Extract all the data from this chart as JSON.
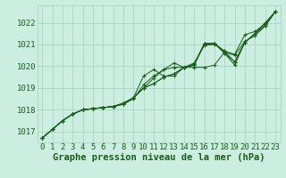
{
  "bg_color": "#cceee0",
  "plot_bg_color": "#cceee0",
  "grid_color": "#aad4c4",
  "line_color": "#1a5c1a",
  "marker_color": "#1a5c1a",
  "xlabel": "Graphe pression niveau de la mer (hPa)",
  "xlabel_fontsize": 7.5,
  "tick_fontsize": 6.5,
  "xlim": [
    -0.5,
    23.5
  ],
  "ylim": [
    1016.5,
    1022.8
  ],
  "yticks": [
    1017,
    1018,
    1019,
    1020,
    1021,
    1022
  ],
  "xticks": [
    0,
    1,
    2,
    3,
    4,
    5,
    6,
    7,
    8,
    9,
    10,
    11,
    12,
    13,
    14,
    15,
    16,
    17,
    18,
    19,
    20,
    21,
    22,
    23
  ],
  "series": [
    [
      1016.7,
      1017.1,
      1017.5,
      1017.8,
      1018.0,
      1018.05,
      1018.1,
      1018.15,
      1018.3,
      1018.55,
      1019.0,
      1019.2,
      1019.5,
      1019.65,
      1019.95,
      1020.05,
      1021.0,
      1021.05,
      1020.6,
      1020.05,
      1021.1,
      1021.5,
      1022.0,
      1022.5
    ],
    [
      1016.7,
      1017.1,
      1017.5,
      1017.8,
      1018.0,
      1018.05,
      1018.1,
      1018.15,
      1018.25,
      1018.55,
      1019.55,
      1019.85,
      1019.55,
      1019.55,
      1019.95,
      1020.1,
      1021.05,
      1021.05,
      1020.7,
      1020.2,
      1021.1,
      1021.5,
      1021.85,
      1022.5
    ],
    [
      1016.7,
      1017.1,
      1017.5,
      1017.8,
      1018.0,
      1018.05,
      1018.1,
      1018.15,
      1018.3,
      1018.55,
      1019.0,
      1019.45,
      1019.85,
      1020.15,
      1019.95,
      1020.15,
      1020.95,
      1021.0,
      1020.7,
      1020.55,
      1021.45,
      1021.6,
      1021.95,
      1022.5
    ],
    [
      1016.7,
      1017.1,
      1017.5,
      1017.8,
      1018.0,
      1018.05,
      1018.1,
      1018.15,
      1018.3,
      1018.55,
      1019.0,
      1019.2,
      1019.5,
      1019.65,
      1019.95,
      1019.95,
      1019.95,
      1020.05,
      1020.65,
      1020.5,
      1021.15,
      1021.4,
      1021.85,
      1022.5
    ],
    [
      1016.7,
      1017.1,
      1017.5,
      1017.8,
      1018.0,
      1018.05,
      1018.1,
      1018.15,
      1018.25,
      1018.5,
      1019.15,
      1019.55,
      1019.85,
      1019.95,
      1019.95,
      1020.05,
      1021.05,
      1021.05,
      1020.6,
      1020.2,
      1021.1,
      1021.5,
      1021.95,
      1022.5
    ]
  ]
}
